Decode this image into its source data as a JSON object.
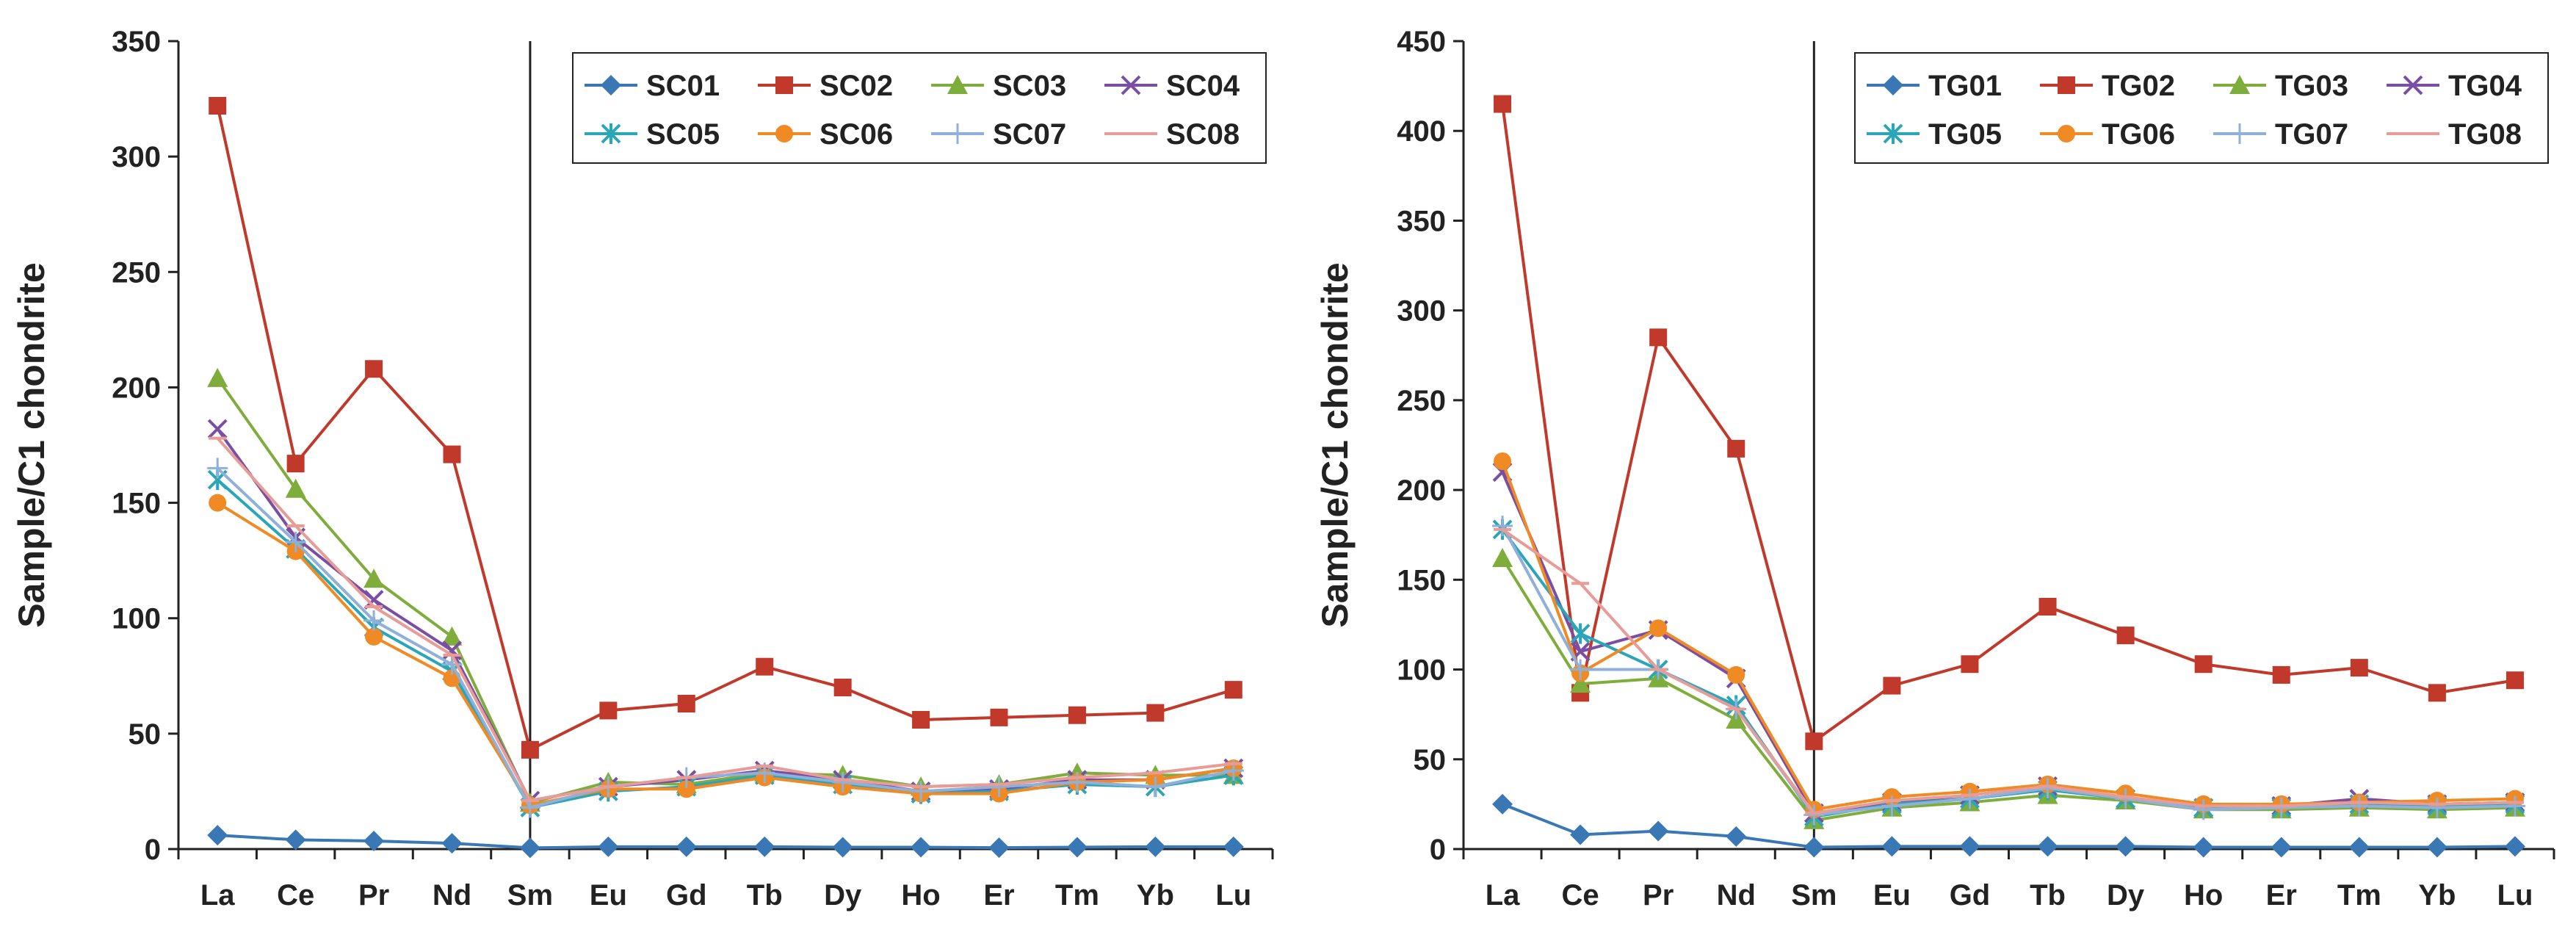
{
  "chart_data": [
    {
      "type": "line",
      "title": "",
      "xlabel": "",
      "ylabel": "Sample/C1 chondrite",
      "ylim": [
        0,
        350
      ],
      "yticks": [
        0,
        50,
        100,
        150,
        200,
        250,
        300,
        350
      ],
      "categories": [
        "La",
        "Ce",
        "Pr",
        "Nd",
        "Sm",
        "Eu",
        "Gd",
        "Tb",
        "Dy",
        "Ho",
        "Er",
        "Tm",
        "Yb",
        "Lu"
      ],
      "divider_after": "Sm",
      "legend_position": "top-right",
      "grid": false,
      "series": [
        {
          "name": "SC01",
          "color": "#3a78b5",
          "marker": "diamond",
          "values": [
            6,
            4,
            3.5,
            2.5,
            0.5,
            1,
            1,
            1,
            0.8,
            0.8,
            0.6,
            0.8,
            1,
            1
          ]
        },
        {
          "name": "SC02",
          "color": "#c0392b",
          "marker": "square",
          "values": [
            322,
            167,
            208,
            171,
            43,
            60,
            63,
            79,
            70,
            56,
            57,
            58,
            59,
            69
          ]
        },
        {
          "name": "SC03",
          "color": "#7fad3c",
          "marker": "triangle",
          "values": [
            204,
            156,
            117,
            92,
            20,
            29,
            28,
            33,
            32,
            27,
            28,
            33,
            32,
            32
          ]
        },
        {
          "name": "SC04",
          "color": "#7a4ea3",
          "marker": "x",
          "values": [
            182,
            135,
            108,
            86,
            21,
            27,
            30,
            34,
            30,
            25,
            26,
            30,
            30,
            35
          ]
        },
        {
          "name": "SC05",
          "color": "#2aa6b8",
          "marker": "star",
          "values": [
            160,
            130,
            96,
            77,
            18,
            25,
            27,
            32,
            28,
            24,
            25,
            28,
            27,
            32
          ]
        },
        {
          "name": "SC06",
          "color": "#f08a24",
          "marker": "circle",
          "values": [
            150,
            129,
            92,
            74,
            19,
            26,
            26,
            31,
            27,
            24,
            24,
            29,
            30,
            35
          ]
        },
        {
          "name": "SC07",
          "color": "#8fb0d8",
          "marker": "plus",
          "values": [
            165,
            133,
            99,
            80,
            18,
            27,
            31,
            33,
            29,
            25,
            27,
            29,
            27,
            34
          ]
        },
        {
          "name": "SC08",
          "color": "#e89c98",
          "marker": "dash",
          "values": [
            178,
            140,
            105,
            84,
            21,
            27,
            31,
            36,
            30,
            27,
            28,
            31,
            33,
            37
          ]
        }
      ]
    },
    {
      "type": "line",
      "title": "",
      "xlabel": "",
      "ylabel": "Sample/C1 chondrite",
      "ylim": [
        0,
        450
      ],
      "yticks": [
        0,
        50,
        100,
        150,
        200,
        250,
        300,
        350,
        400,
        450
      ],
      "categories": [
        "La",
        "Ce",
        "Pr",
        "Nd",
        "Sm",
        "Eu",
        "Gd",
        "Tb",
        "Dy",
        "Ho",
        "Er",
        "Tm",
        "Yb",
        "Lu"
      ],
      "divider_after": "Sm",
      "legend_position": "top-right",
      "grid": false,
      "series": [
        {
          "name": "TG01",
          "color": "#3a78b5",
          "marker": "diamond",
          "values": [
            25,
            8,
            10,
            7,
            1,
            1.5,
            1.5,
            1.5,
            1.5,
            1,
            1,
            1,
            1,
            1.5
          ]
        },
        {
          "name": "TG02",
          "color": "#c0392b",
          "marker": "square",
          "values": [
            415,
            87,
            285,
            223,
            60,
            91,
            103,
            135,
            119,
            103,
            97,
            101,
            87,
            94
          ]
        },
        {
          "name": "TG03",
          "color": "#7fad3c",
          "marker": "triangle",
          "values": [
            162,
            92,
            95,
            72,
            16,
            23,
            26,
            30,
            27,
            22,
            22,
            23,
            22,
            23
          ]
        },
        {
          "name": "TG04",
          "color": "#7a4ea3",
          "marker": "x",
          "values": [
            210,
            110,
            122,
            95,
            20,
            26,
            30,
            35,
            28,
            23,
            24,
            28,
            25,
            26
          ]
        },
        {
          "name": "TG05",
          "color": "#2aa6b8",
          "marker": "star",
          "values": [
            178,
            120,
            100,
            80,
            18,
            25,
            28,
            33,
            28,
            23,
            23,
            25,
            24,
            25
          ]
        },
        {
          "name": "TG06",
          "color": "#f08a24",
          "marker": "circle",
          "values": [
            216,
            98,
            123,
            97,
            22,
            29,
            32,
            36,
            31,
            25,
            25,
            26,
            27,
            28
          ]
        },
        {
          "name": "TG07",
          "color": "#8fb0d8",
          "marker": "plus",
          "values": [
            180,
            100,
            100,
            78,
            19,
            24,
            28,
            34,
            28,
            22,
            23,
            24,
            23,
            24
          ]
        },
        {
          "name": "TG08",
          "color": "#e89c98",
          "marker": "dash",
          "values": [
            178,
            148,
            100,
            78,
            20,
            27,
            30,
            35,
            29,
            24,
            24,
            26,
            25,
            26
          ]
        }
      ]
    }
  ]
}
